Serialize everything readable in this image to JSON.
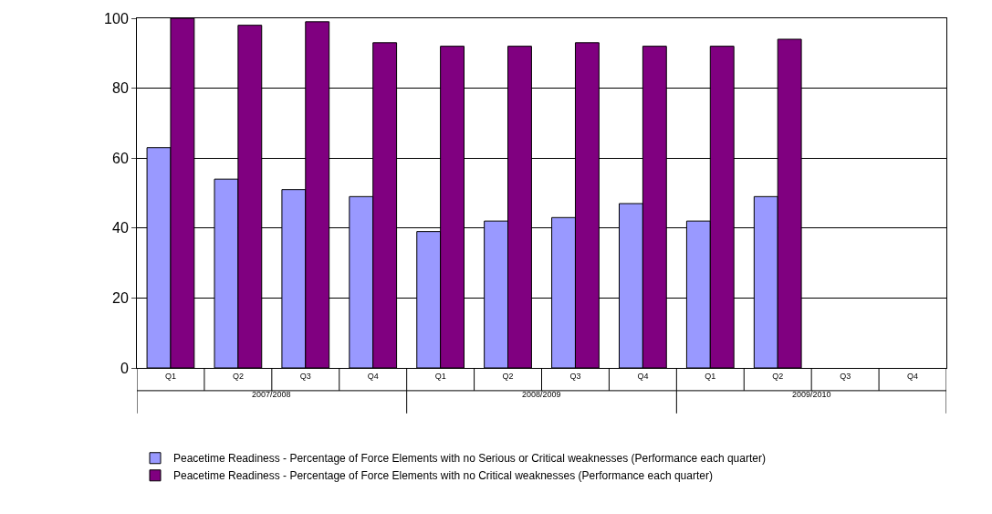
{
  "chart_data": {
    "type": "bar",
    "categories": [
      "Q1",
      "Q2",
      "Q3",
      "Q4",
      "Q1",
      "Q2",
      "Q3",
      "Q4",
      "Q1",
      "Q2",
      "Q3",
      "Q4"
    ],
    "series": [
      {
        "name": "Peacetime Readiness - Percentage of Force Elements with no Serious or Critical weaknesses (Performance each quarter)",
        "color": "#9999ff",
        "values": [
          63,
          54,
          51,
          49,
          39,
          42,
          43,
          47,
          42,
          49,
          null,
          null
        ]
      },
      {
        "name": "Peacetime Readiness - Percentage of Force Elements with no Critical weaknesses (Performance each quarter)",
        "color": "#800080",
        "values": [
          100,
          98,
          99,
          93,
          92,
          92,
          93,
          92,
          92,
          94,
          null,
          null
        ]
      }
    ],
    "annotations": [
      "2007/2008",
      "2008/2009",
      "2009/2010"
    ],
    "ylim": [
      0,
      100
    ],
    "yticks": [
      0,
      20,
      40,
      60,
      80,
      100
    ],
    "grid": "y",
    "legend": "bottom"
  }
}
